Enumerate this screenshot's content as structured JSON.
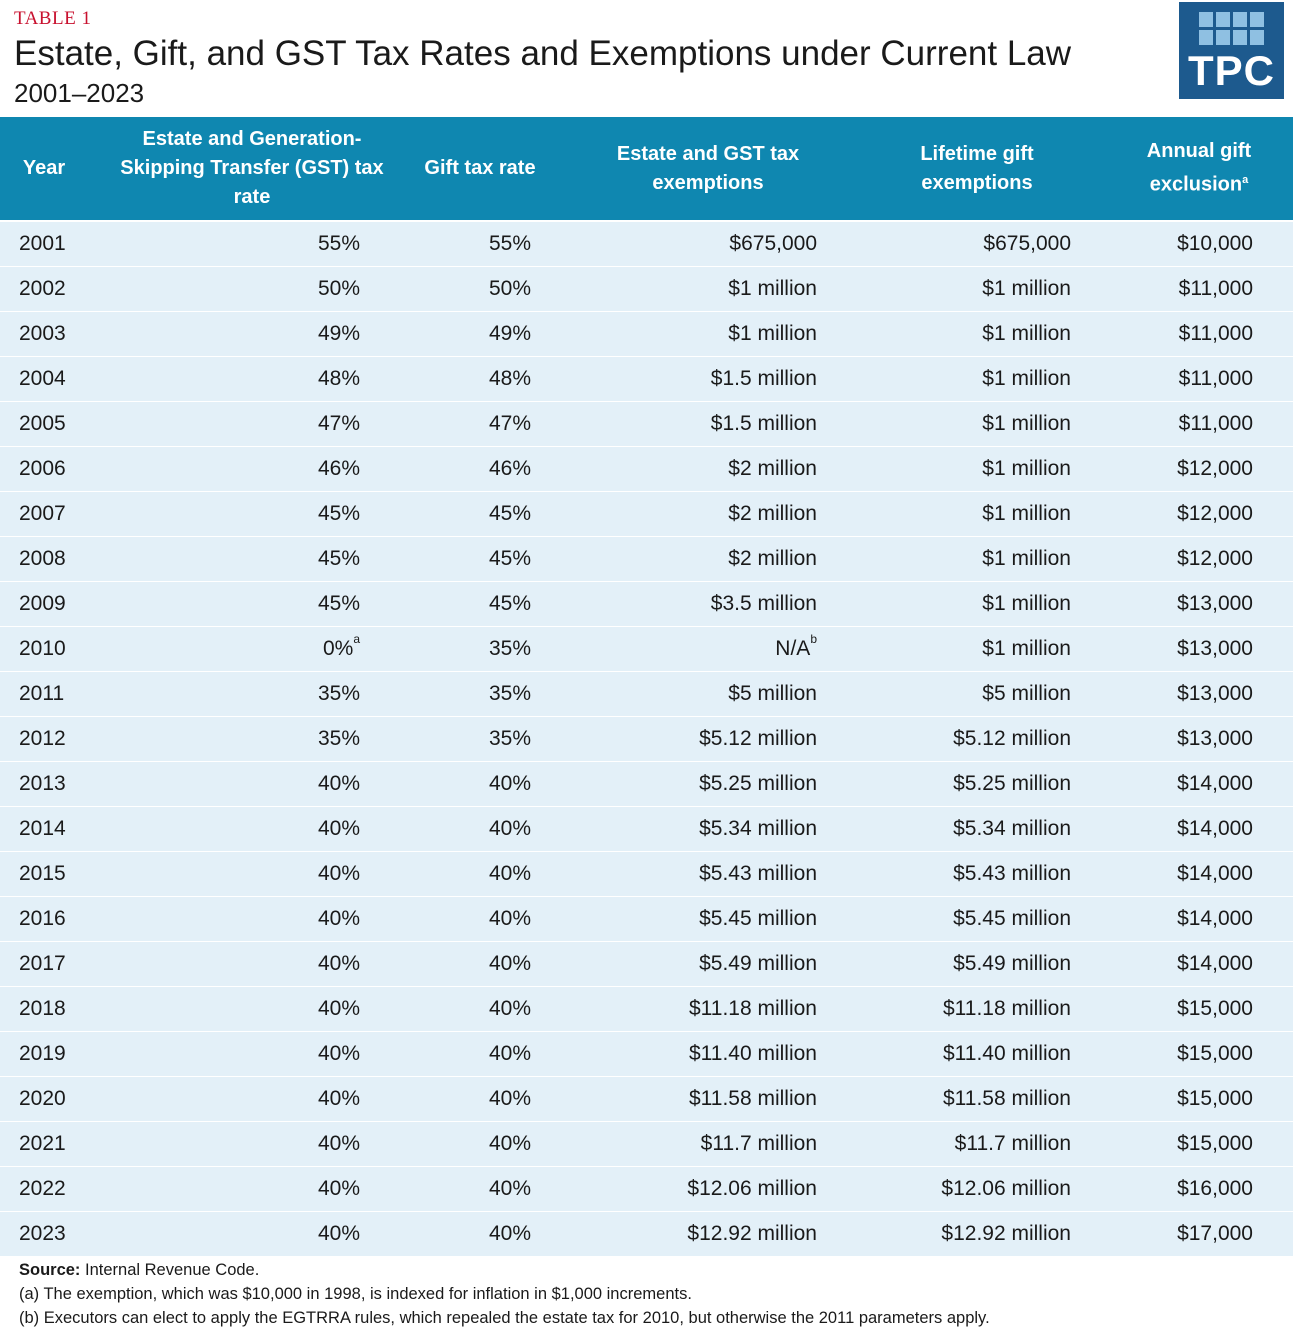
{
  "header": {
    "label": "TABLE 1",
    "title": "Estate, Gift, and GST Tax Rates and Exemptions under Current Law",
    "subtitle": "2001–2023",
    "logo_text": "TPC"
  },
  "colors": {
    "accent": "#0f87b0",
    "row_bg": "#e3f0f8",
    "label_red": "#c8102e",
    "logo_bg": "#1d5a8e"
  },
  "table": {
    "columns": {
      "year": "Year",
      "estate_rate": "Estate and Generation-Skipping Transfer (GST) tax rate",
      "gift_rate": "Gift tax rate",
      "exemption": "Estate and GST tax exemptions",
      "lifetime": "Lifetime gift exemptions",
      "annual": "Annual gift exclusion",
      "annual_sup": "a"
    },
    "rows": [
      {
        "year": "2001",
        "estate_rate": "55%",
        "estate_sup": "",
        "gift_rate": "55%",
        "exemption": "$675,000",
        "exemption_sup": "",
        "lifetime": "$675,000",
        "annual": "$10,000"
      },
      {
        "year": "2002",
        "estate_rate": "50%",
        "estate_sup": "",
        "gift_rate": "50%",
        "exemption": "$1 million",
        "exemption_sup": "",
        "lifetime": "$1 million",
        "annual": "$11,000"
      },
      {
        "year": "2003",
        "estate_rate": "49%",
        "estate_sup": "",
        "gift_rate": "49%",
        "exemption": "$1 million",
        "exemption_sup": "",
        "lifetime": "$1 million",
        "annual": "$11,000"
      },
      {
        "year": "2004",
        "estate_rate": "48%",
        "estate_sup": "",
        "gift_rate": "48%",
        "exemption": "$1.5 million",
        "exemption_sup": "",
        "lifetime": "$1 million",
        "annual": "$11,000"
      },
      {
        "year": "2005",
        "estate_rate": "47%",
        "estate_sup": "",
        "gift_rate": "47%",
        "exemption": "$1.5 million",
        "exemption_sup": "",
        "lifetime": "$1 million",
        "annual": "$11,000"
      },
      {
        "year": "2006",
        "estate_rate": "46%",
        "estate_sup": "",
        "gift_rate": "46%",
        "exemption": "$2 million",
        "exemption_sup": "",
        "lifetime": "$1 million",
        "annual": "$12,000"
      },
      {
        "year": "2007",
        "estate_rate": "45%",
        "estate_sup": "",
        "gift_rate": "45%",
        "exemption": "$2 million",
        "exemption_sup": "",
        "lifetime": "$1 million",
        "annual": "$12,000"
      },
      {
        "year": "2008",
        "estate_rate": "45%",
        "estate_sup": "",
        "gift_rate": "45%",
        "exemption": "$2 million",
        "exemption_sup": "",
        "lifetime": "$1 million",
        "annual": "$12,000"
      },
      {
        "year": "2009",
        "estate_rate": "45%",
        "estate_sup": "",
        "gift_rate": "45%",
        "exemption": "$3.5 million",
        "exemption_sup": "",
        "lifetime": "$1 million",
        "annual": "$13,000"
      },
      {
        "year": "2010",
        "estate_rate": "0%",
        "estate_sup": "a",
        "gift_rate": "35%",
        "exemption": "N/A",
        "exemption_sup": "b",
        "lifetime": "$1 million",
        "annual": "$13,000"
      },
      {
        "year": "2011",
        "estate_rate": "35%",
        "estate_sup": "",
        "gift_rate": "35%",
        "exemption": "$5 million",
        "exemption_sup": "",
        "lifetime": "$5 million",
        "annual": "$13,000"
      },
      {
        "year": "2012",
        "estate_rate": "35%",
        "estate_sup": "",
        "gift_rate": "35%",
        "exemption": "$5.12 million",
        "exemption_sup": "",
        "lifetime": "$5.12 million",
        "annual": "$13,000"
      },
      {
        "year": "2013",
        "estate_rate": "40%",
        "estate_sup": "",
        "gift_rate": "40%",
        "exemption": "$5.25 million",
        "exemption_sup": "",
        "lifetime": "$5.25 million",
        "annual": "$14,000"
      },
      {
        "year": "2014",
        "estate_rate": "40%",
        "estate_sup": "",
        "gift_rate": "40%",
        "exemption": "$5.34 million",
        "exemption_sup": "",
        "lifetime": "$5.34 million",
        "annual": "$14,000"
      },
      {
        "year": "2015",
        "estate_rate": "40%",
        "estate_sup": "",
        "gift_rate": "40%",
        "exemption": "$5.43 million",
        "exemption_sup": "",
        "lifetime": "$5.43 million",
        "annual": "$14,000"
      },
      {
        "year": "2016",
        "estate_rate": "40%",
        "estate_sup": "",
        "gift_rate": "40%",
        "exemption": "$5.45 million",
        "exemption_sup": "",
        "lifetime": "$5.45 million",
        "annual": "$14,000"
      },
      {
        "year": "2017",
        "estate_rate": "40%",
        "estate_sup": "",
        "gift_rate": "40%",
        "exemption": "$5.49 million",
        "exemption_sup": "",
        "lifetime": "$5.49 million",
        "annual": "$14,000"
      },
      {
        "year": "2018",
        "estate_rate": "40%",
        "estate_sup": "",
        "gift_rate": "40%",
        "exemption": "$11.18 million",
        "exemption_sup": "",
        "lifetime": "$11.18 million",
        "annual": "$15,000"
      },
      {
        "year": "2019",
        "estate_rate": "40%",
        "estate_sup": "",
        "gift_rate": "40%",
        "exemption": "$11.40 million",
        "exemption_sup": "",
        "lifetime": "$11.40 million",
        "annual": "$15,000"
      },
      {
        "year": "2020",
        "estate_rate": "40%",
        "estate_sup": "",
        "gift_rate": "40%",
        "exemption": "$11.58 million",
        "exemption_sup": "",
        "lifetime": "$11.58 million",
        "annual": "$15,000"
      },
      {
        "year": "2021",
        "estate_rate": "40%",
        "estate_sup": "",
        "gift_rate": "40%",
        "exemption": "$11.7 million",
        "exemption_sup": "",
        "lifetime": "$11.7 million",
        "annual": "$15,000"
      },
      {
        "year": "2022",
        "estate_rate": "40%",
        "estate_sup": "",
        "gift_rate": "40%",
        "exemption": "$12.06 million",
        "exemption_sup": "",
        "lifetime": "$12.06 million",
        "annual": "$16,000"
      },
      {
        "year": "2023",
        "estate_rate": "40%",
        "estate_sup": "",
        "gift_rate": "40%",
        "exemption": "$12.92 million",
        "exemption_sup": "",
        "lifetime": "$12.92 million",
        "annual": "$17,000"
      }
    ]
  },
  "notes": {
    "source_label": "Source:",
    "source_text": " Internal Revenue Code.",
    "note_a": "(a) The exemption, which was $10,000 in 1998, is indexed for inflation in $1,000 increments.",
    "note_b": "(b) Executors can elect to apply the EGTRRA rules, which repealed the estate tax for 2010, but otherwise the 2011 parameters apply."
  }
}
